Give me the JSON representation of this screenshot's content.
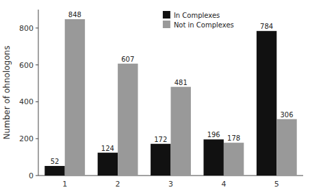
{
  "chart_data": {
    "type": "bar",
    "categories": [
      1,
      2,
      3,
      4,
      5
    ],
    "series": [
      {
        "name": "In Complexes",
        "color": "#111111",
        "values": [
          52,
          124,
          172,
          196,
          784
        ]
      },
      {
        "name": "Not in Complexes",
        "color": "#999999",
        "values": [
          848,
          607,
          481,
          178,
          306
        ]
      }
    ],
    "ylabel": "Number of ohnologons",
    "ylim": [
      0,
      900
    ],
    "yticks": [
      0,
      200,
      400,
      600,
      800
    ],
    "legend": "upper right",
    "data_labels": true,
    "grid": false
  }
}
